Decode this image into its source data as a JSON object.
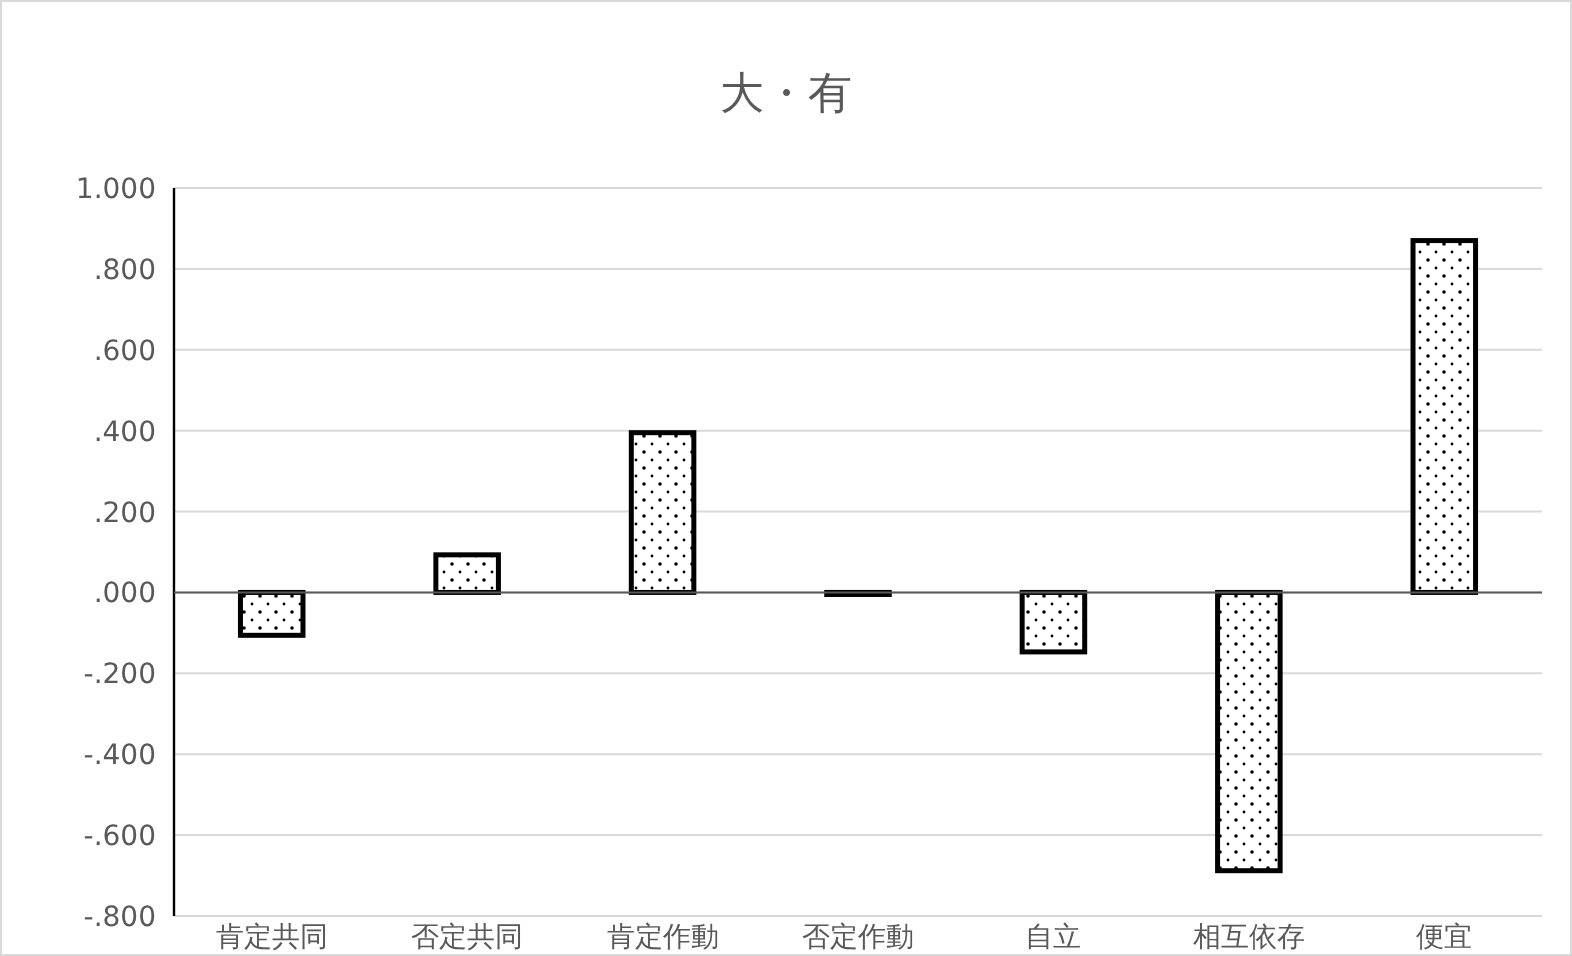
{
  "chart_data": {
    "type": "bar",
    "title": "大・有",
    "categories": [
      "肯定共同",
      "否定共同",
      "肯定作動",
      "否定作動",
      "自立",
      "相互依存",
      "便宜"
    ],
    "values": [
      -0.106,
      0.093,
      0.395,
      -0.005,
      -0.147,
      -0.688,
      0.87
    ],
    "color": "#000000",
    "ylim": [
      -0.8,
      1.0
    ],
    "yticks": [
      {
        "value": 1.0,
        "label": "1.000"
      },
      {
        "value": 0.8,
        "label": ".800"
      },
      {
        "value": 0.6,
        "label": ".600"
      },
      {
        "value": 0.4,
        "label": ".400"
      },
      {
        "value": 0.2,
        "label": ".200"
      },
      {
        "value": 0,
        "label": ".000"
      },
      {
        "value": -0.2,
        "label": "-.200"
      },
      {
        "value": -0.4,
        "label": "-.400"
      },
      {
        "value": -0.6,
        "label": "-.600"
      },
      {
        "value": -0.8,
        "label": "-.800"
      }
    ],
    "grid": "y"
  }
}
